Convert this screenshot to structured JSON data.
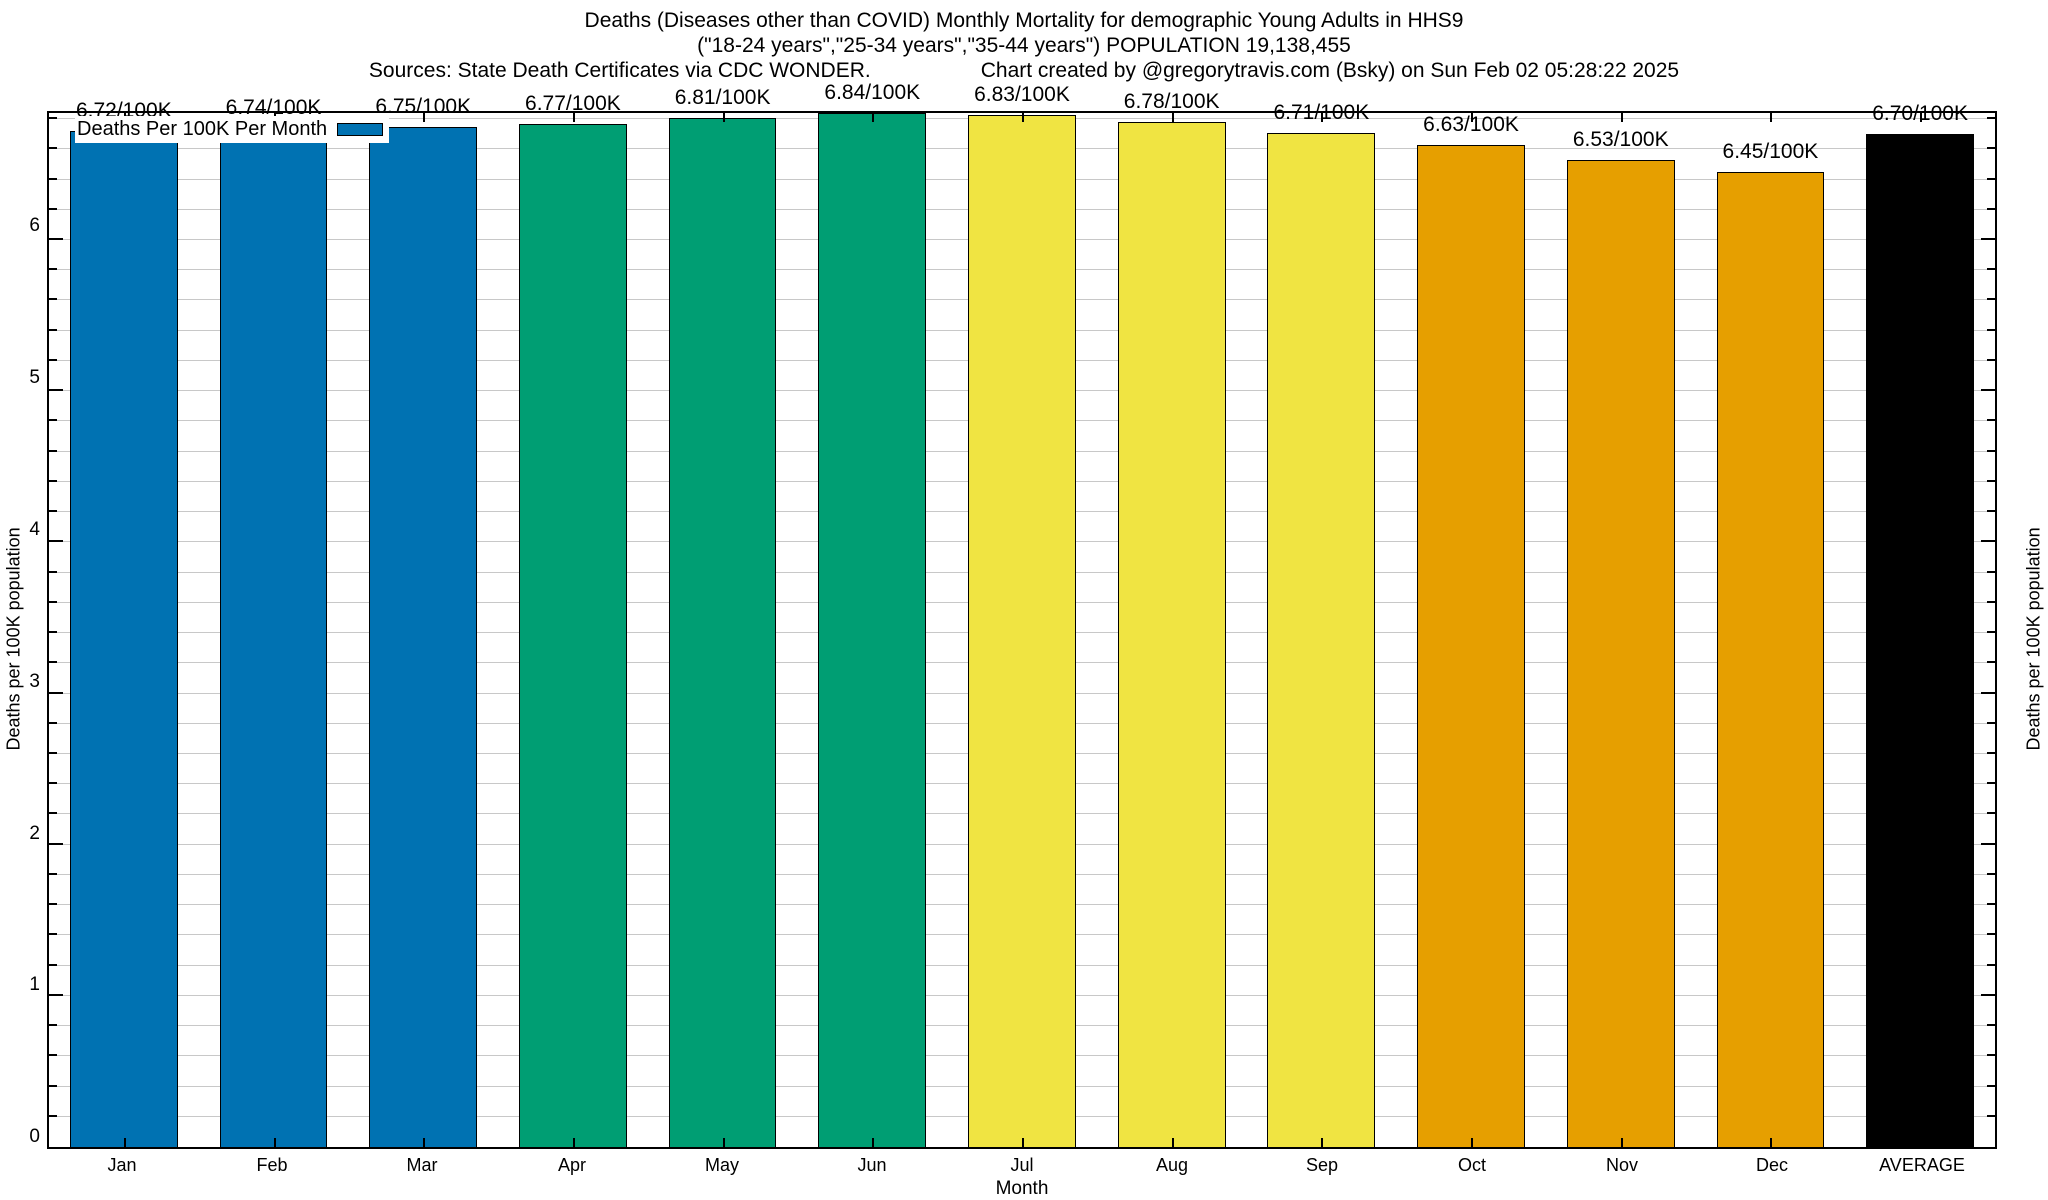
{
  "header": {
    "line1": "Deaths (Diseases other than COVID) Monthly Mortality for demographic Young Adults in HHS9",
    "line2": "(\"18-24 years\",\"25-34 years\",\"35-44 years\") POPULATION 19,138,455",
    "line3_left": "Sources: State Death Certificates via CDC WONDER.",
    "line3_right": "Chart created by @gregorytravis.com (Bsky) on Sun Feb 02 05:28:22 2025"
  },
  "legend": {
    "label": "Deaths Per 100K Per Month",
    "swatch_color": "#0072B2"
  },
  "chart_data": {
    "type": "bar",
    "title": "Deaths (Diseases other than COVID) Monthly Mortality for demographic Young Adults in HHS9",
    "categories": [
      "Jan",
      "Feb",
      "Mar",
      "Apr",
      "May",
      "Jun",
      "Jul",
      "Aug",
      "Sep",
      "Oct",
      "Nov",
      "Dec",
      "AVERAGE"
    ],
    "values": [
      6.72,
      6.74,
      6.75,
      6.77,
      6.81,
      6.84,
      6.83,
      6.78,
      6.71,
      6.63,
      6.53,
      6.45,
      6.7
    ],
    "bar_labels": [
      "6.72/100K",
      "6.74/100K",
      "6.75/100K",
      "6.77/100K",
      "6.81/100K",
      "6.84/100K",
      "6.83/100K",
      "6.78/100K",
      "6.71/100K",
      "6.63/100K",
      "6.53/100K",
      "6.45/100K",
      "6.70/100K"
    ],
    "bar_colors": [
      "#0072B2",
      "#0072B2",
      "#0072B2",
      "#009E73",
      "#009E73",
      "#009E73",
      "#F0E442",
      "#F0E442",
      "#F0E442",
      "#E69F00",
      "#E69F00",
      "#E69F00",
      "#000000"
    ],
    "xlabel": "Month",
    "ylabel_left": "Deaths per 100K population",
    "ylabel_right": "Deaths per 100K population",
    "ylim": [
      0,
      6.84
    ],
    "yticks": [
      "0",
      "1",
      "2",
      "3",
      "4",
      "5",
      "6"
    ],
    "ytick_values": [
      0,
      1,
      2,
      3,
      4,
      5,
      6
    ],
    "minor_tick_step": 0.2,
    "grid": "on",
    "gridline_color": "#c8c8c8",
    "legend_position": "top-left"
  }
}
